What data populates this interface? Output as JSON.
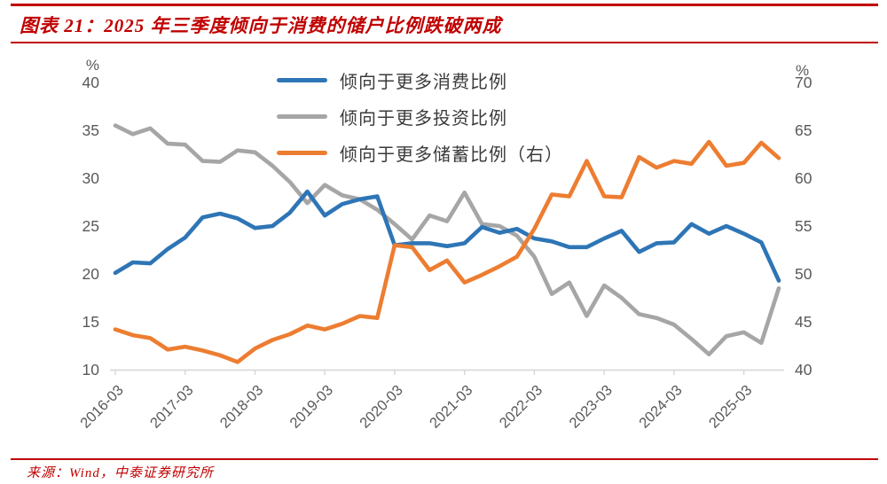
{
  "header": {
    "title": "图表 21：2025 年三季度倾向于消费的储户比例跌破两成"
  },
  "footer": {
    "source": "来源：Wind，中泰证券研究所"
  },
  "chart_data": {
    "type": "line",
    "title": "图表 21：2025 年三季度倾向于消费的储户比例跌破两成",
    "x": [
      "2016-03",
      "2016-06",
      "2016-09",
      "2016-12",
      "2017-03",
      "2017-06",
      "2017-09",
      "2017-12",
      "2018-03",
      "2018-06",
      "2018-09",
      "2018-12",
      "2019-03",
      "2019-06",
      "2019-09",
      "2019-12",
      "2020-03",
      "2020-06",
      "2020-09",
      "2020-12",
      "2021-03",
      "2021-06",
      "2021-09",
      "2021-12",
      "2022-03",
      "2022-06",
      "2022-09",
      "2022-12",
      "2023-03",
      "2023-06",
      "2023-09",
      "2023-12",
      "2024-03",
      "2024-06",
      "2024-09",
      "2024-12",
      "2025-03",
      "2025-06",
      "2025-09"
    ],
    "x_tick_labels": [
      "2016-03",
      "2017-03",
      "2018-03",
      "2019-03",
      "2020-03",
      "2021-03",
      "2022-03",
      "2023-03",
      "2024-03",
      "2025-03"
    ],
    "series": [
      {
        "name": "倾向于更多消费比例",
        "axis": "left",
        "color": "#2e75b6",
        "values": [
          20.1,
          21.2,
          21.1,
          22.6,
          23.8,
          25.9,
          26.3,
          25.8,
          24.8,
          25.0,
          26.4,
          28.6,
          26.1,
          27.3,
          27.8,
          28.1,
          23.0,
          23.2,
          23.2,
          22.9,
          23.2,
          24.9,
          24.3,
          24.7,
          23.7,
          23.4,
          22.8,
          22.8,
          23.7,
          24.5,
          22.3,
          23.2,
          23.3,
          25.2,
          24.2,
          25.0,
          24.2,
          23.3,
          19.3
        ]
      },
      {
        "name": "倾向于更多投资比例",
        "axis": "left",
        "color": "#a6a6a6",
        "values": [
          35.5,
          34.6,
          35.2,
          33.6,
          33.5,
          31.8,
          31.7,
          32.9,
          32.7,
          31.3,
          29.6,
          27.4,
          29.3,
          28.2,
          27.8,
          26.7,
          25.2,
          23.6,
          26.1,
          25.5,
          28.5,
          25.2,
          25.0,
          24.0,
          21.8,
          17.9,
          19.1,
          15.6,
          18.8,
          17.5,
          15.8,
          15.4,
          14.7,
          13.2,
          11.6,
          13.5,
          13.9,
          12.8,
          18.5
        ]
      },
      {
        "name": "倾向于更多储蓄比例（右）",
        "axis": "right",
        "color": "#ed7d31",
        "values": [
          44.2,
          43.6,
          43.3,
          42.1,
          42.4,
          42.0,
          41.5,
          40.8,
          42.2,
          43.1,
          43.7,
          44.6,
          44.2,
          44.8,
          45.6,
          45.4,
          53.0,
          52.8,
          50.4,
          51.4,
          49.1,
          49.9,
          50.8,
          51.8,
          54.7,
          58.3,
          58.1,
          61.8,
          58.1,
          58.0,
          62.2,
          61.1,
          61.8,
          61.5,
          63.8,
          61.3,
          61.6,
          63.7,
          62.1
        ]
      }
    ],
    "left_axis": {
      "label": "%",
      "min": 10,
      "max": 40,
      "ticks": [
        10,
        15,
        20,
        25,
        30,
        35,
        40
      ]
    },
    "right_axis": {
      "label": "%",
      "min": 40,
      "max": 70,
      "ticks": [
        40,
        45,
        50,
        55,
        60,
        65,
        70
      ]
    },
    "grid": false,
    "legend_position": "top-center",
    "colors": {
      "accent_red": "#c00000",
      "axis_text": "#595959",
      "axis_line": "#d6d6d6"
    }
  }
}
